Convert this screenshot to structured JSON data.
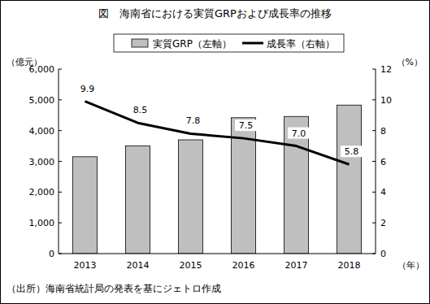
{
  "chart_data": {
    "type": "bar",
    "title": "図　海南省における実質GRPおよび成長率の推移",
    "categories": [
      "2013",
      "2014",
      "2015",
      "2016",
      "2017",
      "2018"
    ],
    "x_label": "（年）",
    "y_label": "（億元）",
    "y2_label": "（%）",
    "source": "（出所）海南省統計局の発表を基にジェトロ作成",
    "series": [
      {
        "name": "実質GRP（左軸）",
        "type": "bar",
        "color": "#bfbfbf",
        "values": [
          3150,
          3500,
          3700,
          4420,
          4460,
          4830
        ]
      },
      {
        "name": "成長率（右軸）",
        "type": "line",
        "color": "#000000",
        "axis": "y2",
        "data_labels": true,
        "values": [
          9.9,
          8.5,
          7.8,
          7.5,
          7.0,
          5.8
        ],
        "value_labels": [
          "9.9",
          "8.5",
          "7.8",
          "7.5",
          "7.0",
          "5.8"
        ]
      }
    ],
    "ylim": [
      0,
      6000
    ],
    "yticks": [
      0,
      {
        "value": 1000,
        "label": "1,000"
      },
      {
        "value": 2000,
        "label": "2,000"
      },
      {
        "value": 3000,
        "label": "3,000"
      },
      {
        "value": 4000,
        "label": "4,000"
      },
      {
        "value": 5000,
        "label": "5,000"
      },
      {
        "value": 6000,
        "label": "6,000"
      }
    ],
    "y2lim": [
      0,
      12
    ],
    "y2ticks": [
      0,
      2,
      4,
      6,
      8,
      10,
      12
    ],
    "grid": false,
    "legend": "top"
  }
}
